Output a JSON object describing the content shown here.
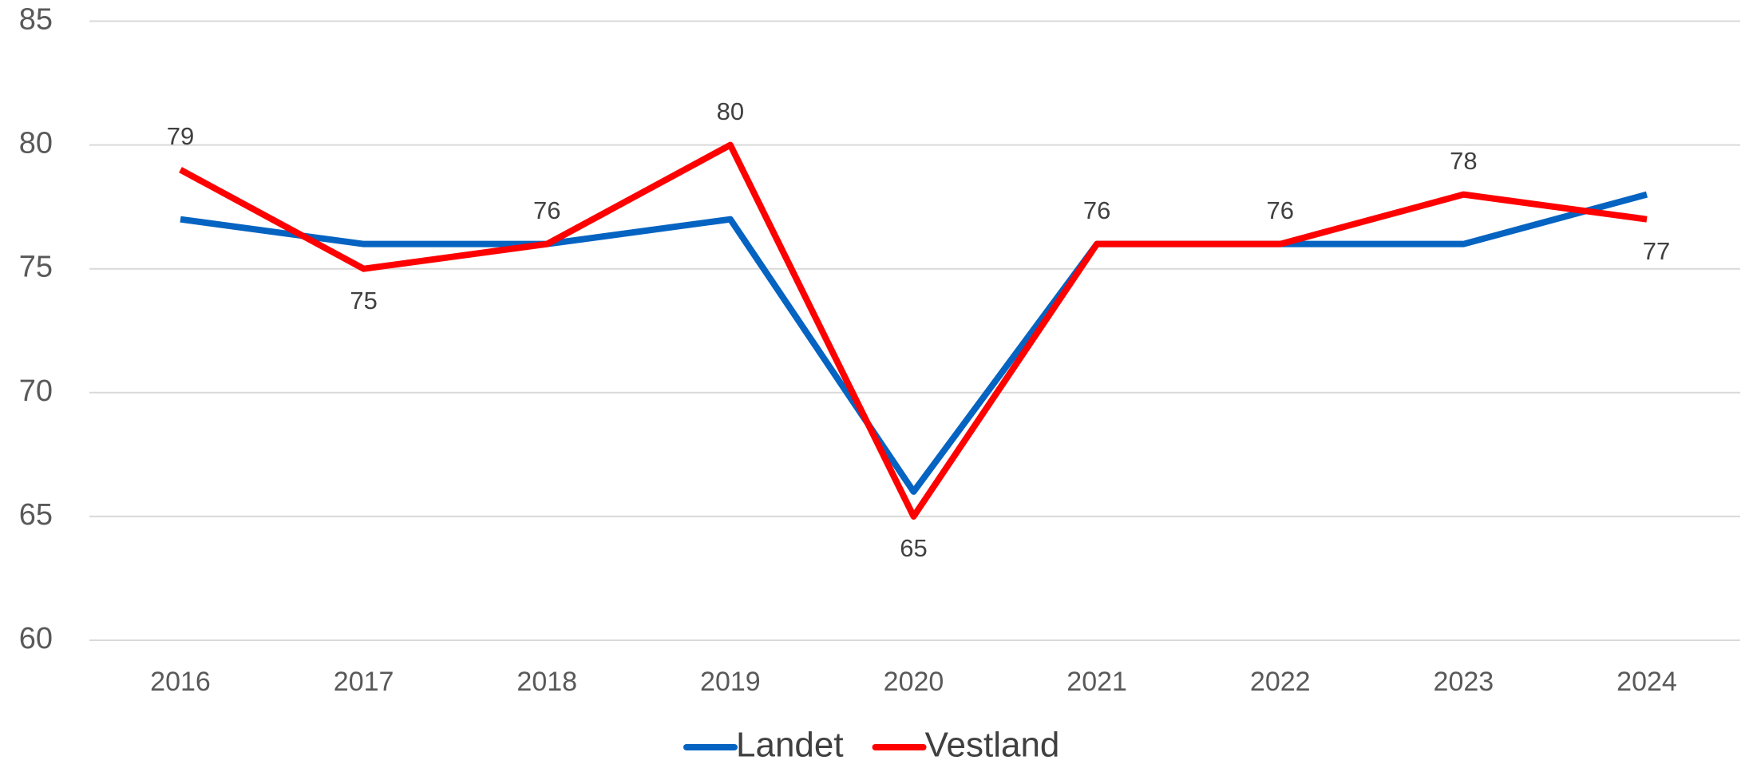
{
  "chart_data": {
    "type": "line",
    "categories": [
      "2016",
      "2017",
      "2018",
      "2019",
      "2020",
      "2021",
      "2022",
      "2023",
      "2024"
    ],
    "series": [
      {
        "name": "Landet",
        "color": "#0563c1",
        "values": [
          77,
          76,
          76,
          77,
          66,
          76,
          76,
          76,
          78
        ]
      },
      {
        "name": "Vestland",
        "color": "#ff0000",
        "values": [
          79,
          75,
          76,
          80,
          65,
          76,
          76,
          78,
          77
        ]
      }
    ],
    "ylim": [
      60,
      85
    ],
    "yticks": [
      60,
      65,
      70,
      75,
      80,
      85
    ],
    "grid": true,
    "legend": "bottom"
  }
}
